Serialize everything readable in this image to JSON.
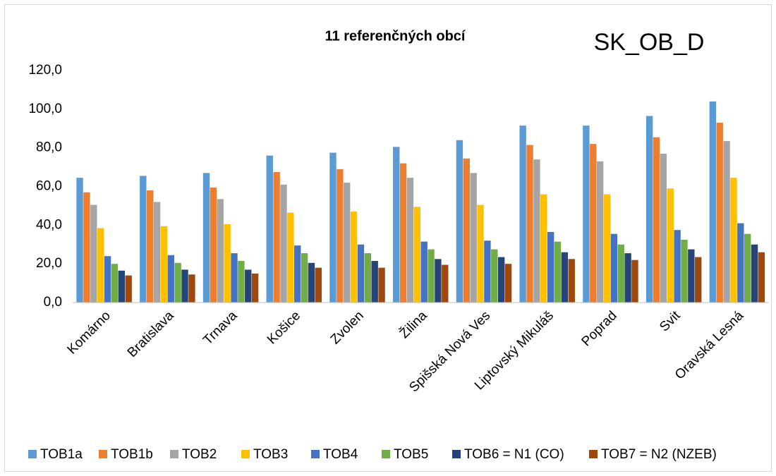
{
  "chart_data": {
    "type": "bar",
    "title": "11 referenčných obcí",
    "annotation": "SK_OB_D",
    "categories": [
      "Komárno",
      "Bratislava",
      "Trnava",
      "Košice",
      "Zvolen",
      "Žilina",
      "Spišská Nová Ves",
      "Liptovský Mikuláš",
      "Poprad",
      "Svit",
      "Oravská Lesná"
    ],
    "series": [
      {
        "name": "TOB1a",
        "color": "#5b9bd5",
        "values": [
          64.5,
          65.5,
          67,
          76,
          77.5,
          80.5,
          84,
          91.5,
          91.5,
          96.5,
          104
        ]
      },
      {
        "name": "TOB1b",
        "color": "#ed7d31",
        "values": [
          57,
          58,
          59.5,
          67.5,
          69,
          72,
          74.5,
          81.5,
          82,
          85.5,
          93
        ]
      },
      {
        "name": "TOB2",
        "color": "#a5a5a5",
        "values": [
          50.5,
          52,
          53.5,
          61,
          62,
          64.5,
          67,
          74,
          73,
          77,
          83.5
        ]
      },
      {
        "name": "TOB3",
        "color": "#ffc000",
        "values": [
          38.5,
          39.5,
          40.5,
          46.5,
          47,
          49.5,
          50.5,
          56,
          56,
          59,
          64.5
        ]
      },
      {
        "name": "TOB4",
        "color": "#4472c4",
        "values": [
          24,
          24.5,
          25.5,
          29.5,
          30,
          31.5,
          32,
          36.5,
          35.5,
          37.5,
          41
        ]
      },
      {
        "name": "TOB5",
        "color": "#70ad47",
        "values": [
          20,
          20.5,
          21.5,
          25.5,
          25.5,
          27.5,
          27.5,
          31.5,
          30,
          32.5,
          35.5
        ]
      },
      {
        "name": "TOB6 = N1 (CO)",
        "color": "#264478",
        "values": [
          16.5,
          17,
          17,
          20.5,
          21.5,
          22.5,
          23.5,
          26,
          25.5,
          27.5,
          30
        ]
      },
      {
        "name": "TOB7 = N2 (NZEB)",
        "color": "#9e480e",
        "values": [
          14,
          14.5,
          15,
          18,
          18,
          19.5,
          20,
          22.5,
          22,
          23.5,
          26
        ]
      }
    ],
    "ylim": [
      0,
      120
    ],
    "yticks": [
      {
        "value": 0,
        "label": "0,0"
      },
      {
        "value": 20,
        "label": "20,0"
      },
      {
        "value": 40,
        "label": "40,0"
      },
      {
        "value": 60,
        "label": "60,0"
      },
      {
        "value": 80,
        "label": "80,0"
      },
      {
        "value": 100,
        "label": "100,0"
      },
      {
        "value": 120,
        "label": "120,0"
      }
    ],
    "grid": false,
    "legend": "bottom"
  }
}
